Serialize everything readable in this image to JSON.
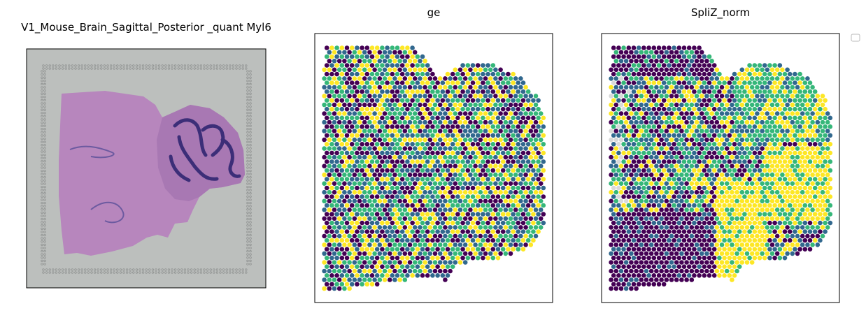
{
  "panels": [
    {
      "title": "V1_Mouse_Brain_Sagittal_Posterior _quant Myl6",
      "kind": "histology-image"
    },
    {
      "title": "ge",
      "kind": "spatial-scatter"
    },
    {
      "title": "SpliZ_norm",
      "kind": "spatial-scatter"
    }
  ],
  "colors": {
    "background": "#bcbfbd",
    "tissue": "#b786bd",
    "tissue_dark": "#9b6aa8",
    "nuclei": "#3c2e78",
    "missing": "#d9d9d9",
    "frame": "#000000"
  },
  "chart_data": [
    {
      "type": "image",
      "title": "V1_Mouse_Brain_Sagittal_Posterior _quant Myl6",
      "description_tokens": [
        "H&E stained sagittal section of posterior mouse brain"
      ]
    },
    {
      "type": "scatter",
      "title": "ge",
      "colormap": "viridis",
      "bins": [
        "#440154",
        "#31688e",
        "#35b779",
        "#fde725"
      ],
      "bin_weights": [
        0.26,
        0.24,
        0.26,
        0.24
      ],
      "seed": 7,
      "legend": "none"
    },
    {
      "type": "scatter",
      "title": "SpliZ_norm",
      "colormap": "viridis",
      "bins": [
        "#440154",
        "#31688e",
        "#35b779",
        "#fde725"
      ],
      "missing_color": "#d9d9d9",
      "seed": 13,
      "legend": "top-right (empty)"
    }
  ]
}
